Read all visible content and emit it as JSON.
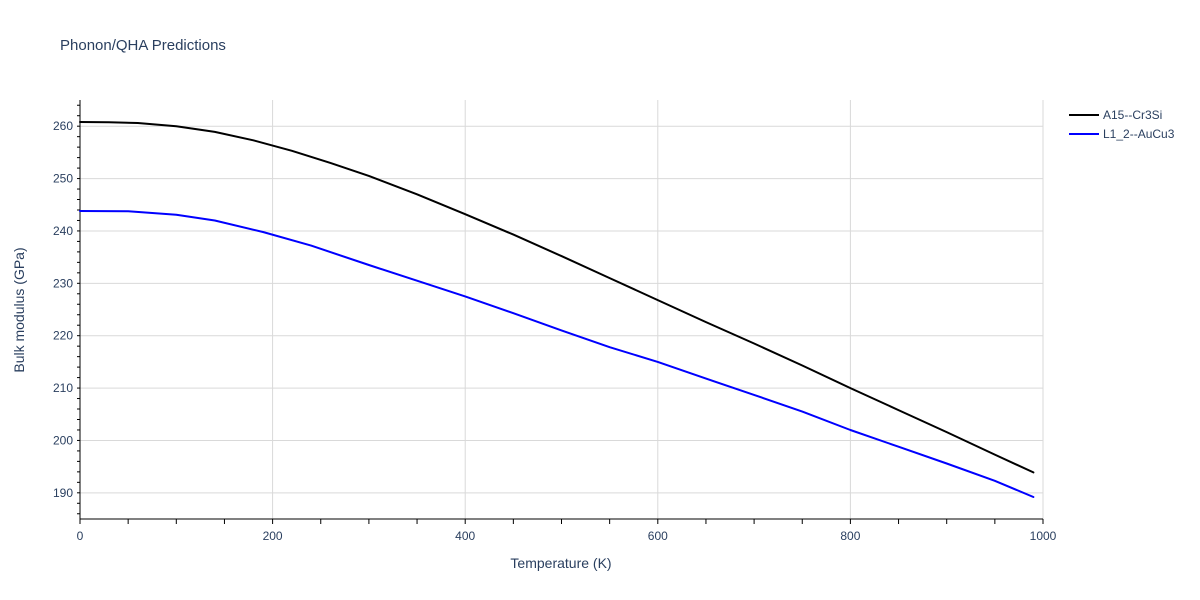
{
  "chart_data": {
    "type": "line",
    "title": "Phonon/QHA Predictions",
    "xlabel": "Temperature (K)",
    "ylabel": "Bulk modulus (GPa)",
    "xlim": [
      0,
      1000
    ],
    "ylim": [
      185,
      265
    ],
    "xticks": [
      0,
      200,
      400,
      600,
      800,
      1000
    ],
    "yticks": [
      190,
      200,
      210,
      220,
      230,
      240,
      250,
      260
    ],
    "grid": true,
    "legend_position": "top-right",
    "series": [
      {
        "name": "A15--Cr3Si",
        "color": "#000000",
        "x": [
          0,
          30,
          60,
          100,
          140,
          180,
          220,
          260,
          300,
          350,
          400,
          450,
          500,
          550,
          600,
          650,
          700,
          750,
          800,
          850,
          900,
          950,
          990
        ],
        "y": [
          260.8,
          260.75,
          260.6,
          260.0,
          258.9,
          257.3,
          255.3,
          253.0,
          250.5,
          247.0,
          243.2,
          239.3,
          235.2,
          231.0,
          226.8,
          222.6,
          218.5,
          214.3,
          210.0,
          205.8,
          201.6,
          197.3,
          193.9
        ]
      },
      {
        "name": "L1_2--AuCu3",
        "color": "#0000ff",
        "x": [
          0,
          50,
          100,
          140,
          190,
          240,
          300,
          350,
          400,
          450,
          500,
          550,
          600,
          650,
          700,
          750,
          800,
          850,
          900,
          950,
          990
        ],
        "y": [
          243.8,
          243.75,
          243.1,
          242.0,
          239.8,
          237.2,
          233.5,
          230.5,
          227.5,
          224.3,
          221.0,
          217.8,
          215.0,
          211.8,
          208.7,
          205.5,
          202.0,
          198.8,
          195.6,
          192.3,
          189.2
        ]
      }
    ]
  }
}
